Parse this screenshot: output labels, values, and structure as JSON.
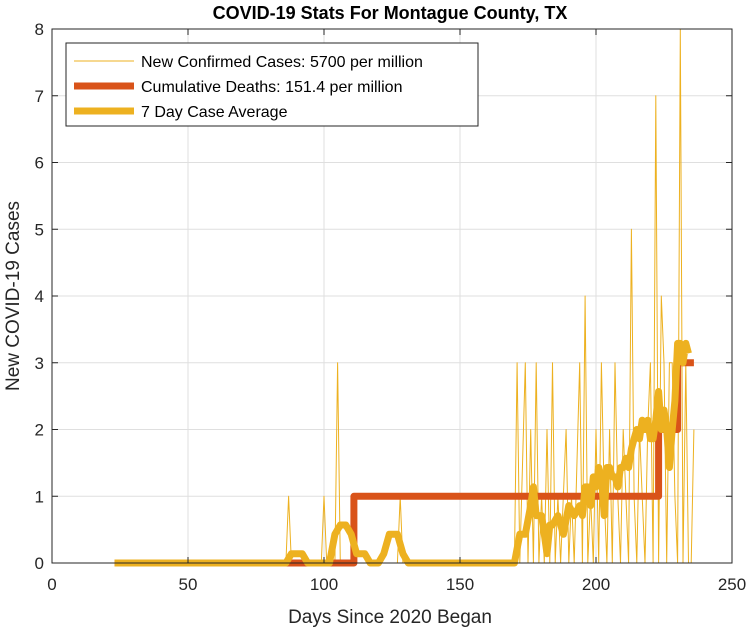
{
  "chart_data": {
    "type": "line",
    "title": "COVID-19 Stats For Montague County, TX",
    "xlabel": "Days Since 2020 Began",
    "ylabel": "New COVID-19 Cases",
    "xlim": [
      0,
      250
    ],
    "ylim": [
      0,
      8
    ],
    "xticks": [
      "0",
      "50",
      "100",
      "150",
      "200",
      "250"
    ],
    "yticks": [
      "0",
      "1",
      "2",
      "3",
      "4",
      "5",
      "6",
      "7",
      "8"
    ],
    "grid": true,
    "legend_position": "top-left",
    "series": [
      {
        "name": "New Confirmed Cases: 5700 per million",
        "color": "#EDB120",
        "points": [
          [
            23,
            0
          ],
          [
            86,
            0
          ],
          [
            87,
            1
          ],
          [
            88,
            0
          ],
          [
            99,
            0
          ],
          [
            100,
            1
          ],
          [
            101,
            0
          ],
          [
            104,
            0
          ],
          [
            105,
            3
          ],
          [
            106,
            0
          ],
          [
            127,
            0
          ],
          [
            128,
            1
          ],
          [
            129,
            0
          ],
          [
            170,
            0
          ],
          [
            171,
            3
          ],
          [
            172,
            0
          ],
          [
            174,
            3
          ],
          [
            175,
            0
          ],
          [
            176,
            2
          ],
          [
            177,
            0
          ],
          [
            178,
            3
          ],
          [
            179,
            0
          ],
          [
            180,
            1
          ],
          [
            181,
            0
          ],
          [
            182,
            2
          ],
          [
            183,
            0
          ],
          [
            184,
            3
          ],
          [
            185,
            0
          ],
          [
            186,
            1
          ],
          [
            187,
            0
          ],
          [
            189,
            2
          ],
          [
            190,
            0
          ],
          [
            191,
            1
          ],
          [
            192,
            0
          ],
          [
            194,
            3
          ],
          [
            195,
            0
          ],
          [
            196,
            4
          ],
          [
            197,
            0
          ],
          [
            198,
            1
          ],
          [
            199,
            0
          ],
          [
            200,
            2
          ],
          [
            201,
            0
          ],
          [
            202,
            3
          ],
          [
            203,
            1
          ],
          [
            204,
            0
          ],
          [
            205,
            2
          ],
          [
            206,
            0
          ],
          [
            207,
            3
          ],
          [
            208,
            1
          ],
          [
            209,
            0
          ],
          [
            210,
            2
          ],
          [
            211,
            1
          ],
          [
            212,
            0
          ],
          [
            213,
            5
          ],
          [
            214,
            1
          ],
          [
            215,
            0
          ],
          [
            216,
            2
          ],
          [
            217,
            1
          ],
          [
            218,
            0
          ],
          [
            219,
            2
          ],
          [
            220,
            3
          ],
          [
            221,
            0
          ],
          [
            222,
            7
          ],
          [
            223,
            0
          ],
          [
            224,
            4
          ],
          [
            225,
            3
          ],
          [
            226,
            0
          ],
          [
            227,
            3
          ],
          [
            228,
            3
          ],
          [
            229,
            1
          ],
          [
            230,
            0
          ],
          [
            231,
            8
          ],
          [
            232,
            0
          ],
          [
            233,
            3
          ],
          [
            234,
            0
          ],
          [
            235,
            0
          ],
          [
            236,
            2
          ]
        ]
      },
      {
        "name": "Cumulative Deaths: 151.4 per million",
        "color": "#D95319",
        "points": [
          [
            23,
            0
          ],
          [
            111,
            0
          ],
          [
            111,
            1
          ],
          [
            223,
            1
          ],
          [
            223,
            2
          ],
          [
            230,
            2
          ],
          [
            230,
            3
          ],
          [
            236,
            3
          ]
        ]
      },
      {
        "name": "7 Day Case Average",
        "color": "#EDB120",
        "points": [
          [
            23,
            0
          ],
          [
            86,
            0
          ],
          [
            88,
            0.14
          ],
          [
            92,
            0.14
          ],
          [
            94,
            0
          ],
          [
            102,
            0
          ],
          [
            104,
            0.43
          ],
          [
            106,
            0.57
          ],
          [
            108,
            0.57
          ],
          [
            110,
            0.43
          ],
          [
            112,
            0.14
          ],
          [
            115,
            0.14
          ],
          [
            117,
            0
          ],
          [
            120,
            0
          ],
          [
            122,
            0.14
          ],
          [
            124,
            0.43
          ],
          [
            127,
            0.43
          ],
          [
            129,
            0.14
          ],
          [
            131,
            0
          ],
          [
            170,
            0
          ],
          [
            172,
            0.43
          ],
          [
            174,
            0.43
          ],
          [
            176,
            0.86
          ],
          [
            177,
            1.14
          ],
          [
            178,
            0.71
          ],
          [
            180,
            0.71
          ],
          [
            181,
            0.43
          ],
          [
            182,
            0.14
          ],
          [
            183,
            0.57
          ],
          [
            184,
            0.57
          ],
          [
            186,
            0.71
          ],
          [
            188,
            0.43
          ],
          [
            190,
            0.86
          ],
          [
            192,
            0.71
          ],
          [
            194,
            0.86
          ],
          [
            195,
            0.71
          ],
          [
            196,
            1.14
          ],
          [
            197,
            1.14
          ],
          [
            198,
            0.86
          ],
          [
            199,
            1.29
          ],
          [
            200,
            1.14
          ],
          [
            201,
            1.43
          ],
          [
            202,
            1.29
          ],
          [
            203,
            0.71
          ],
          [
            204,
            1.43
          ],
          [
            205,
            1.43
          ],
          [
            206,
            1.29
          ],
          [
            207,
            1.29
          ],
          [
            208,
            1.14
          ],
          [
            209,
            1.43
          ],
          [
            210,
            1.43
          ],
          [
            211,
            1.57
          ],
          [
            212,
            1.43
          ],
          [
            213,
            1.71
          ],
          [
            214,
            1.86
          ],
          [
            215,
            2.0
          ],
          [
            216,
            1.86
          ],
          [
            217,
            2.14
          ],
          [
            218,
            2.0
          ],
          [
            219,
            2.14
          ],
          [
            220,
            1.86
          ],
          [
            221,
            1.86
          ],
          [
            222,
            2.14
          ],
          [
            223,
            2.57
          ],
          [
            224,
            2.0
          ],
          [
            225,
            2.29
          ],
          [
            226,
            2.0
          ],
          [
            227,
            1.43
          ],
          [
            228,
            2.0
          ],
          [
            229,
            2.43
          ],
          [
            230,
            3.29
          ],
          [
            231,
            3.29
          ],
          [
            232,
            3.0
          ],
          [
            233,
            3.29
          ],
          [
            234,
            3.14
          ]
        ]
      }
    ]
  }
}
